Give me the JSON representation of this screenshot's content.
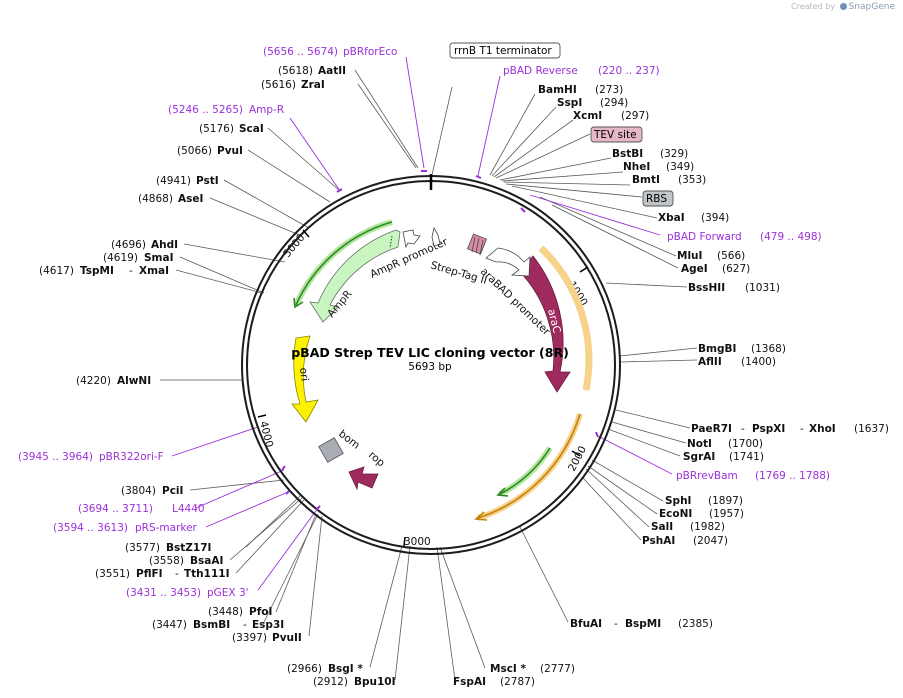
{
  "credit": {
    "prefix": "Created by",
    "brand": "SnapGene"
  },
  "plasmid": {
    "name": "pBAD Strep TEV LIC cloning vector (8R)",
    "size": "5693 bp",
    "length": 5693
  },
  "ticks": [
    "1000",
    "2000",
    "3000",
    "4000",
    "5000"
  ],
  "features": {
    "rrnb": "rrnB T1 terminator",
    "tev": "TEV site",
    "rbs": "RBS",
    "arac": "araC",
    "ori": "ori",
    "ampr": "AmpR",
    "ampr_promoter": "AmpR promoter",
    "strep": "Strep-Tag II",
    "arabad": "araBAD promoter",
    "bom": "bom",
    "rop": "rop"
  },
  "primers": {
    "pbrforeco": {
      "range": "(5656 .. 5674)",
      "name": "pBRforEco"
    },
    "pbad_rev": {
      "name": "pBAD Reverse",
      "range": "(220 .. 237)"
    },
    "ampr_p": {
      "range": "(5246 .. 5265)",
      "name": "Amp-R"
    },
    "pbad_fwd": {
      "name": "pBAD Forward",
      "range": "(479 .. 498)"
    },
    "pbrrevbam": {
      "name": "pBRrevBam",
      "range": "(1769 .. 1788)"
    },
    "pbr322ori": {
      "range": "(3945 .. 3964)",
      "name": "pBR322ori-F"
    },
    "l4440": {
      "range": "(3694 .. 3711)",
      "name": "L4440"
    },
    "prs": {
      "range": "(3594 .. 3613)",
      "name": "pRS-marker"
    },
    "pgex": {
      "range": "(3431 .. 3453)",
      "name": "pGEX 3'"
    }
  },
  "sites": {
    "aatii": {
      "pos": "(5618)",
      "name": "AatII"
    },
    "zrai": {
      "pos": "(5616)",
      "name": "ZraI"
    },
    "scai": {
      "pos": "(5176)",
      "name": "ScaI"
    },
    "pvui": {
      "pos": "(5066)",
      "name": "PvuI"
    },
    "psti": {
      "pos": "(4941)",
      "name": "PstI"
    },
    "asei": {
      "pos": "(4868)",
      "name": "AseI"
    },
    "ahdi": {
      "pos": "(4696)",
      "name": "AhdI"
    },
    "smai": {
      "pos": "(4619)",
      "name": "SmaI"
    },
    "tspmi": {
      "pos": "(4617)",
      "name": "TspMI",
      "name2": "XmaI"
    },
    "alwni": {
      "pos": "(4220)",
      "name": "AlwNI"
    },
    "pcii": {
      "pos": "(3804)",
      "name": "PciI"
    },
    "bstz17i": {
      "pos": "(3577)",
      "name": "BstZ17I"
    },
    "bsaai": {
      "pos": "(3558)",
      "name": "BsaAI"
    },
    "pflfi": {
      "pos": "(3551)",
      "name": "PflFI",
      "name2": "Tth111I"
    },
    "pfoi": {
      "pos": "(3448)",
      "name": "PfoI"
    },
    "bsmbi": {
      "pos": "(3447)",
      "name": "BsmBI",
      "name2": "Esp3I"
    },
    "pvuii": {
      "pos": "(3397)",
      "name": "PvuII"
    },
    "bsgi": {
      "pos": "(2966)",
      "name": "BsgI *"
    },
    "bpu10i": {
      "pos": "(2912)",
      "name": "Bpu10I"
    },
    "bamhi": {
      "name": "BamHI",
      "pos": "(273)"
    },
    "sspi": {
      "name": "SspI",
      "pos": "(294)"
    },
    "xcmi": {
      "name": "XcmI",
      "pos": "(297)"
    },
    "bstbi": {
      "name": "BstBI",
      "pos": "(329)"
    },
    "nhei": {
      "name": "NheI",
      "pos": "(349)"
    },
    "bmti": {
      "name": "BmtI",
      "pos": "(353)"
    },
    "xbai": {
      "name": "XbaI",
      "pos": "(394)"
    },
    "mlui": {
      "name": "MluI",
      "pos": "(566)"
    },
    "agei": {
      "name": "AgeI",
      "pos": "(627)"
    },
    "bsshii": {
      "name": "BssHII",
      "pos": "(1031)"
    },
    "bmgbi": {
      "name": "BmgBI",
      "pos": "(1368)"
    },
    "aflii": {
      "name": "AflII",
      "pos": "(1400)"
    },
    "paer7i": {
      "name": "PaeR7I",
      "name2": "PspXI",
      "name3": "XhoI",
      "pos": "(1637)"
    },
    "noti": {
      "name": "NotI",
      "pos": "(1700)"
    },
    "sgrai": {
      "name": "SgrAI",
      "pos": "(1741)"
    },
    "sphi": {
      "name": "SphI",
      "pos": "(1897)"
    },
    "econi": {
      "name": "EcoNI",
      "pos": "(1957)"
    },
    "sali": {
      "name": "SalI",
      "pos": "(1982)"
    },
    "pshai": {
      "name": "PshAI",
      "pos": "(2047)"
    },
    "bfuai": {
      "name": "BfuAI",
      "name2": "BspMI",
      "pos": "(2385)"
    },
    "msci": {
      "name": "MscI *",
      "pos": "(2777)"
    },
    "fspai": {
      "name": "FspAI",
      "pos": "(2787)"
    }
  }
}
